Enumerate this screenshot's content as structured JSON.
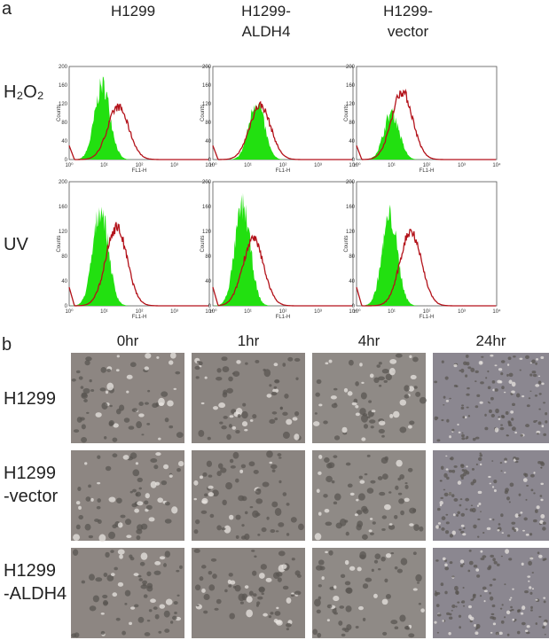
{
  "panel_a": {
    "label": "a",
    "columns": [
      [
        "H1299"
      ],
      [
        "H1299-",
        "ALDH4"
      ],
      [
        "H1299-",
        "vector"
      ]
    ],
    "rows": [
      "H₂O₂",
      "UV"
    ],
    "histogram_axes": {
      "x_label": "FL1-H",
      "y_label": "Counts",
      "yticks": [
        "0",
        "40",
        "80",
        "120",
        "160",
        "200"
      ],
      "xticks": [
        "10⁰",
        "10¹",
        "10²",
        "10³",
        "10⁴"
      ]
    }
  },
  "panel_b": {
    "label": "b",
    "columns": [
      "0hr",
      "1hr",
      "4hr",
      "24hr"
    ],
    "rows": [
      [
        "H1299"
      ],
      [
        "H1299",
        "-vector"
      ],
      [
        "H1299",
        "-ALDH4"
      ]
    ]
  }
}
